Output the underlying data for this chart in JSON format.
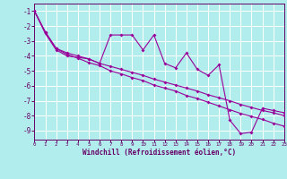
{
  "xlabel": "Windchill (Refroidissement éolien,°C)",
  "background_color": "#b2eded",
  "grid_color": "#ffffff",
  "line_color": "#990099",
  "tick_color": "#660066",
  "xlim": [
    0,
    23
  ],
  "ylim": [
    -9.6,
    -0.5
  ],
  "yticks": [
    -1,
    -2,
    -3,
    -4,
    -5,
    -6,
    -7,
    -8,
    -9
  ],
  "xticks": [
    0,
    1,
    2,
    3,
    4,
    5,
    6,
    7,
    8,
    9,
    10,
    11,
    12,
    13,
    14,
    15,
    16,
    17,
    18,
    19,
    20,
    21,
    22,
    23
  ],
  "s1_x": [
    0,
    1,
    2,
    3,
    4,
    5,
    6,
    7,
    8,
    9,
    10,
    11,
    12,
    13,
    14,
    15,
    16,
    17,
    18,
    19,
    20,
    21,
    22,
    23
  ],
  "s1_y": [
    -1.0,
    -2.5,
    -3.6,
    -4.0,
    -4.1,
    -4.2,
    -4.5,
    -2.6,
    -2.6,
    -2.6,
    -3.6,
    -2.6,
    -4.5,
    -4.8,
    -3.8,
    -4.9,
    -5.3,
    -4.6,
    -8.3,
    -9.2,
    -9.1,
    -7.5,
    -7.65,
    -7.8
  ],
  "s2_x": [
    0,
    1,
    2,
    3,
    4,
    5,
    6,
    7,
    8,
    9,
    10,
    11,
    12,
    13,
    14,
    15,
    16,
    17,
    18,
    19,
    20,
    21,
    22,
    23
  ],
  "s2_y": [
    -1.0,
    -2.4,
    -3.5,
    -3.8,
    -4.0,
    -4.2,
    -4.5,
    -4.7,
    -4.9,
    -5.1,
    -5.3,
    -5.55,
    -5.75,
    -5.95,
    -6.15,
    -6.35,
    -6.6,
    -6.8,
    -7.0,
    -7.25,
    -7.45,
    -7.65,
    -7.8,
    -8.0
  ],
  "s3_x": [
    0,
    1,
    2,
    3,
    4,
    5,
    6,
    7,
    8,
    9,
    10,
    11,
    12,
    13,
    14,
    15,
    16,
    17,
    18,
    19,
    20,
    21,
    22,
    23
  ],
  "s3_y": [
    -1.0,
    -2.4,
    -3.5,
    -3.9,
    -4.15,
    -4.45,
    -4.65,
    -5.0,
    -5.2,
    -5.45,
    -5.65,
    -5.95,
    -6.15,
    -6.35,
    -6.65,
    -6.85,
    -7.1,
    -7.35,
    -7.6,
    -7.85,
    -8.05,
    -8.25,
    -8.5,
    -8.7
  ]
}
